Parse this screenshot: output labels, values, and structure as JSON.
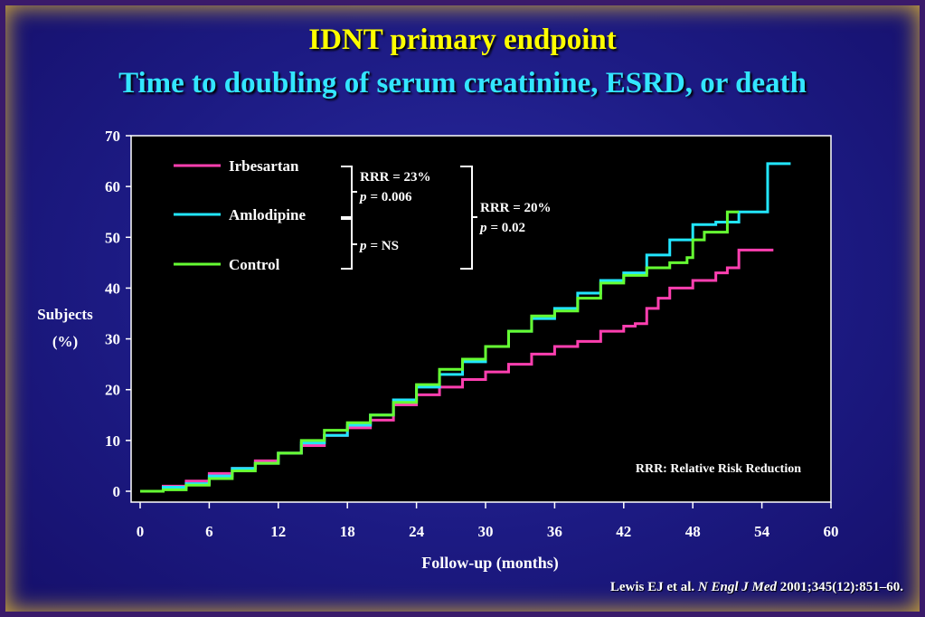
{
  "title": "IDNT primary endpoint",
  "subtitle": "Time to doubling of serum creatinine, ESRD, or death",
  "citation": {
    "authors": "Lewis EJ et al.",
    "journal": "N Engl J Med",
    "details": "2001;345(12):851–60."
  },
  "chart_data": {
    "type": "line",
    "xlabel": "Follow-up (months)",
    "ylabel": "Subjects (%)",
    "ylabel_parts": [
      "Subjects",
      "(%)"
    ],
    "xlim": [
      0,
      60
    ],
    "ylim": [
      0,
      70
    ],
    "x_ticks": [
      0,
      6,
      12,
      18,
      24,
      30,
      36,
      42,
      48,
      54,
      60
    ],
    "y_ticks": [
      0,
      10,
      20,
      30,
      40,
      50,
      60,
      70
    ],
    "grid": false,
    "legend_position": "top-left",
    "series": [
      {
        "name": "Irbesartan",
        "color": "#ff3fb0",
        "points": [
          [
            0,
            0
          ],
          [
            2,
            1
          ],
          [
            4,
            2
          ],
          [
            6,
            3.5
          ],
          [
            8,
            4.5
          ],
          [
            10,
            6
          ],
          [
            12,
            7.5
          ],
          [
            14,
            9
          ],
          [
            16,
            11
          ],
          [
            18,
            12.5
          ],
          [
            20,
            14
          ],
          [
            22,
            17
          ],
          [
            24,
            19
          ],
          [
            26,
            20.5
          ],
          [
            28,
            22
          ],
          [
            30,
            23.5
          ],
          [
            32,
            25
          ],
          [
            34,
            27
          ],
          [
            36,
            28.5
          ],
          [
            38,
            29.5
          ],
          [
            40,
            31.5
          ],
          [
            42,
            32.5
          ],
          [
            43,
            33
          ],
          [
            44,
            36
          ],
          [
            45,
            38
          ],
          [
            46,
            40
          ],
          [
            48,
            41.5
          ],
          [
            50,
            43
          ],
          [
            51,
            44
          ],
          [
            52,
            47.5
          ],
          [
            55,
            47.5
          ]
        ]
      },
      {
        "name": "Amlodipine",
        "color": "#22e6ff",
        "points": [
          [
            0,
            0
          ],
          [
            2,
            0.8
          ],
          [
            4,
            1.5
          ],
          [
            6,
            3
          ],
          [
            8,
            4.5
          ],
          [
            10,
            5.5
          ],
          [
            12,
            7.5
          ],
          [
            14,
            9.5
          ],
          [
            16,
            11
          ],
          [
            18,
            13
          ],
          [
            20,
            15
          ],
          [
            22,
            18
          ],
          [
            24,
            20.5
          ],
          [
            26,
            23
          ],
          [
            28,
            25.5
          ],
          [
            30,
            28.5
          ],
          [
            32,
            31.5
          ],
          [
            34,
            34
          ],
          [
            36,
            36
          ],
          [
            38,
            39
          ],
          [
            40,
            41.5
          ],
          [
            42,
            43
          ],
          [
            44,
            46.5
          ],
          [
            46,
            49.5
          ],
          [
            48,
            52.5
          ],
          [
            50,
            53
          ],
          [
            52,
            55
          ],
          [
            54,
            55
          ],
          [
            54.5,
            64.5
          ],
          [
            56.5,
            64.5
          ]
        ]
      },
      {
        "name": "Control",
        "color": "#66ff33",
        "points": [
          [
            0,
            0
          ],
          [
            2,
            0.3
          ],
          [
            4,
            1.2
          ],
          [
            6,
            2.5
          ],
          [
            8,
            4
          ],
          [
            10,
            5.5
          ],
          [
            12,
            7.5
          ],
          [
            14,
            10
          ],
          [
            16,
            12
          ],
          [
            18,
            13.5
          ],
          [
            20,
            15
          ],
          [
            22,
            17.5
          ],
          [
            24,
            21
          ],
          [
            26,
            24
          ],
          [
            28,
            26
          ],
          [
            30,
            28.5
          ],
          [
            32,
            31.5
          ],
          [
            34,
            34.5
          ],
          [
            36,
            35.5
          ],
          [
            38,
            38
          ],
          [
            40,
            41
          ],
          [
            42,
            42.5
          ],
          [
            44,
            44
          ],
          [
            46,
            45
          ],
          [
            47.5,
            46
          ],
          [
            48,
            49.5
          ],
          [
            49,
            51
          ],
          [
            51,
            51
          ],
          [
            51,
            55
          ],
          [
            52,
            55
          ]
        ]
      }
    ],
    "annotations": {
      "bracket_irb_amlo": {
        "rrr": "RRR = 23%",
        "p_label": "p",
        "p_value": "= 0.006"
      },
      "bracket_amlo_control": {
        "p_label": "p",
        "p_value": "= NS"
      },
      "bracket_irb_control": {
        "rrr": "RRR = 20%",
        "p_label": "p",
        "p_value": "= 0.02"
      },
      "footnote": "RRR: Relative Risk Reduction"
    }
  }
}
